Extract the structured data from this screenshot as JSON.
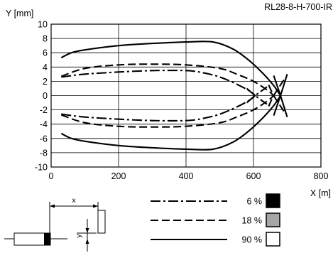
{
  "chart_data": {
    "type": "line",
    "model_label": "RL28-8-H-700-IR",
    "xlabel": "X [m]",
    "ylabel": "Y [mm]",
    "xlim": [
      0,
      800
    ],
    "ylim": [
      -10,
      10
    ],
    "x_ticks": [
      0,
      200,
      400,
      600,
      800
    ],
    "y_ticks": [
      10,
      8,
      6,
      4,
      2,
      0,
      -2,
      -4,
      -6,
      -8,
      -10
    ],
    "grid": true,
    "series": [
      {
        "name": "6 %",
        "line_style": "dash-dot",
        "swatch_color": "#000000",
        "upper": [
          [
            30,
            2.6
          ],
          [
            100,
            3.0
          ],
          [
            200,
            3.3
          ],
          [
            300,
            3.5
          ],
          [
            400,
            3.5
          ],
          [
            450,
            3.2
          ],
          [
            500,
            2.6
          ],
          [
            550,
            1.6
          ],
          [
            590,
            0.6
          ],
          [
            605,
            0
          ]
        ],
        "lower": [
          [
            30,
            -2.6
          ],
          [
            100,
            -3.0
          ],
          [
            200,
            -3.3
          ],
          [
            300,
            -3.5
          ],
          [
            400,
            -3.5
          ],
          [
            450,
            -3.2
          ],
          [
            500,
            -2.6
          ],
          [
            550,
            -1.6
          ],
          [
            590,
            -0.6
          ],
          [
            605,
            0
          ]
        ],
        "tail_upper": [
          [
            580,
            -1.0
          ],
          [
            605,
            0
          ],
          [
            640,
            1.2
          ]
        ],
        "tail_lower": [
          [
            580,
            1.0
          ],
          [
            605,
            0
          ],
          [
            640,
            -1.2
          ]
        ]
      },
      {
        "name": "18 %",
        "line_style": "dashed",
        "swatch_color": "#a6a6a6",
        "upper": [
          [
            30,
            2.7
          ],
          [
            100,
            3.8
          ],
          [
            200,
            4.3
          ],
          [
            300,
            4.4
          ],
          [
            400,
            4.3
          ],
          [
            500,
            3.8
          ],
          [
            550,
            3.0
          ],
          [
            600,
            2.0
          ],
          [
            640,
            0.8
          ],
          [
            660,
            0
          ]
        ],
        "lower": [
          [
            30,
            -2.7
          ],
          [
            100,
            -3.8
          ],
          [
            200,
            -4.3
          ],
          [
            300,
            -4.4
          ],
          [
            400,
            -4.3
          ],
          [
            500,
            -3.8
          ],
          [
            550,
            -3.0
          ],
          [
            600,
            -2.0
          ],
          [
            640,
            -0.8
          ],
          [
            660,
            0
          ]
        ],
        "tail_upper": [
          [
            645,
            -1.5
          ],
          [
            660,
            0
          ],
          [
            690,
            2.2
          ]
        ],
        "tail_lower": [
          [
            645,
            1.5
          ],
          [
            660,
            0
          ],
          [
            690,
            -2.2
          ]
        ]
      },
      {
        "name": "90 %",
        "line_style": "solid",
        "swatch_color": "#ffffff",
        "upper": [
          [
            30,
            5.3
          ],
          [
            60,
            6.0
          ],
          [
            100,
            6.4
          ],
          [
            200,
            7.0
          ],
          [
            300,
            7.3
          ],
          [
            400,
            7.5
          ],
          [
            480,
            7.5
          ],
          [
            540,
            6.5
          ],
          [
            590,
            4.8
          ],
          [
            630,
            3.0
          ],
          [
            660,
            1.4
          ],
          [
            680,
            0
          ]
        ],
        "lower": [
          [
            30,
            -5.3
          ],
          [
            60,
            -6.0
          ],
          [
            100,
            -6.4
          ],
          [
            200,
            -7.0
          ],
          [
            300,
            -7.3
          ],
          [
            400,
            -7.5
          ],
          [
            480,
            -7.5
          ],
          [
            540,
            -6.5
          ],
          [
            590,
            -4.8
          ],
          [
            630,
            -3.0
          ],
          [
            660,
            -1.4
          ],
          [
            680,
            0
          ]
        ],
        "tail_upper": [
          [
            660,
            -2.8
          ],
          [
            680,
            0
          ],
          [
            700,
            3.0
          ]
        ],
        "tail_lower": [
          [
            660,
            2.8
          ],
          [
            680,
            0
          ],
          [
            700,
            -3.0
          ]
        ]
      }
    ]
  },
  "diagram": {
    "x_label": "x",
    "y_label": "y"
  }
}
